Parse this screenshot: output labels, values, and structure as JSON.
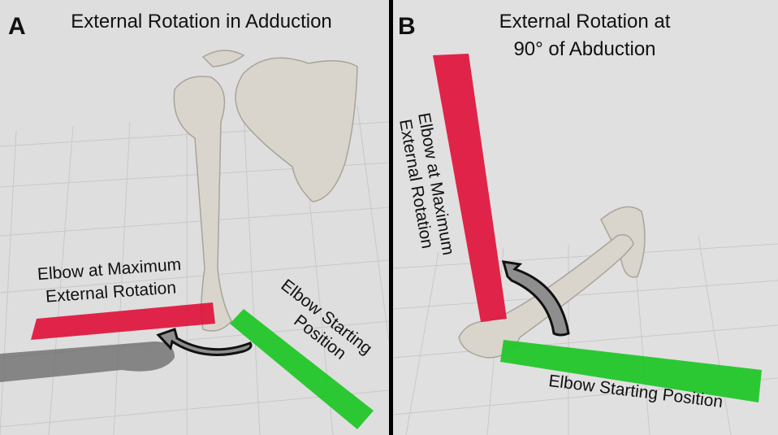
{
  "panels": [
    {
      "letter": "A",
      "title_lines": [
        "External Rotation in Adduction"
      ],
      "max_rotation_label_lines": [
        "Elbow at Maximum",
        "External Rotation"
      ],
      "start_label_lines": [
        "Elbow Starting",
        "Position"
      ]
    },
    {
      "letter": "B",
      "title_lines": [
        "External Rotation at",
        "90° of Abduction"
      ],
      "max_rotation_label_lines": [
        "Elbow at Maximum",
        "External Rotation"
      ],
      "start_label_lines": [
        "Elbow Starting Position"
      ]
    }
  ]
}
